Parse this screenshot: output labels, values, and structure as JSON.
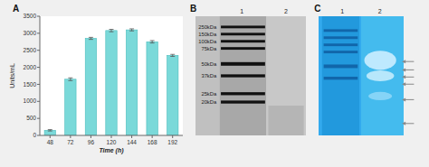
{
  "chart_data": [
    {
      "type": "bar",
      "title": "A",
      "categories": [
        "48",
        "72",
        "96",
        "120",
        "144",
        "168",
        "192"
      ],
      "values": [
        150,
        1650,
        2850,
        3080,
        3100,
        2750,
        2350
      ],
      "errors": [
        20,
        40,
        30,
        35,
        30,
        35,
        30
      ],
      "color": "#7ad9d9",
      "xlabel": "Time (h)",
      "ylabel": "Units/mL",
      "ylim": [
        0,
        3500
      ],
      "yticks": [
        0,
        500,
        1000,
        1500,
        2000,
        2500,
        3000,
        3500
      ],
      "grid": false
    },
    {
      "type": "gel",
      "title": "B",
      "lanes": [
        "1",
        "2"
      ],
      "ylim": [
        0,
        1
      ],
      "values": [
        0.91,
        0.85,
        0.79,
        0.73,
        0.6,
        0.5,
        0.35,
        0.28
      ],
      "labels": [
        "250kDa",
        "150kDa",
        "100kDa",
        "75kDa",
        "50kDa",
        "37kDa",
        "25kDa",
        "20kDa"
      ],
      "color": "#111111"
    },
    {
      "type": "gel",
      "title": "C",
      "lanes": [
        "1",
        "2"
      ],
      "ylim": [
        0,
        1
      ],
      "values": [
        0.88,
        0.82,
        0.76,
        0.7,
        0.58,
        0.48
      ],
      "arrows": [
        0.62,
        0.55,
        0.49,
        0.43,
        0.3,
        0.1
      ],
      "color": "#1166aa"
    }
  ]
}
